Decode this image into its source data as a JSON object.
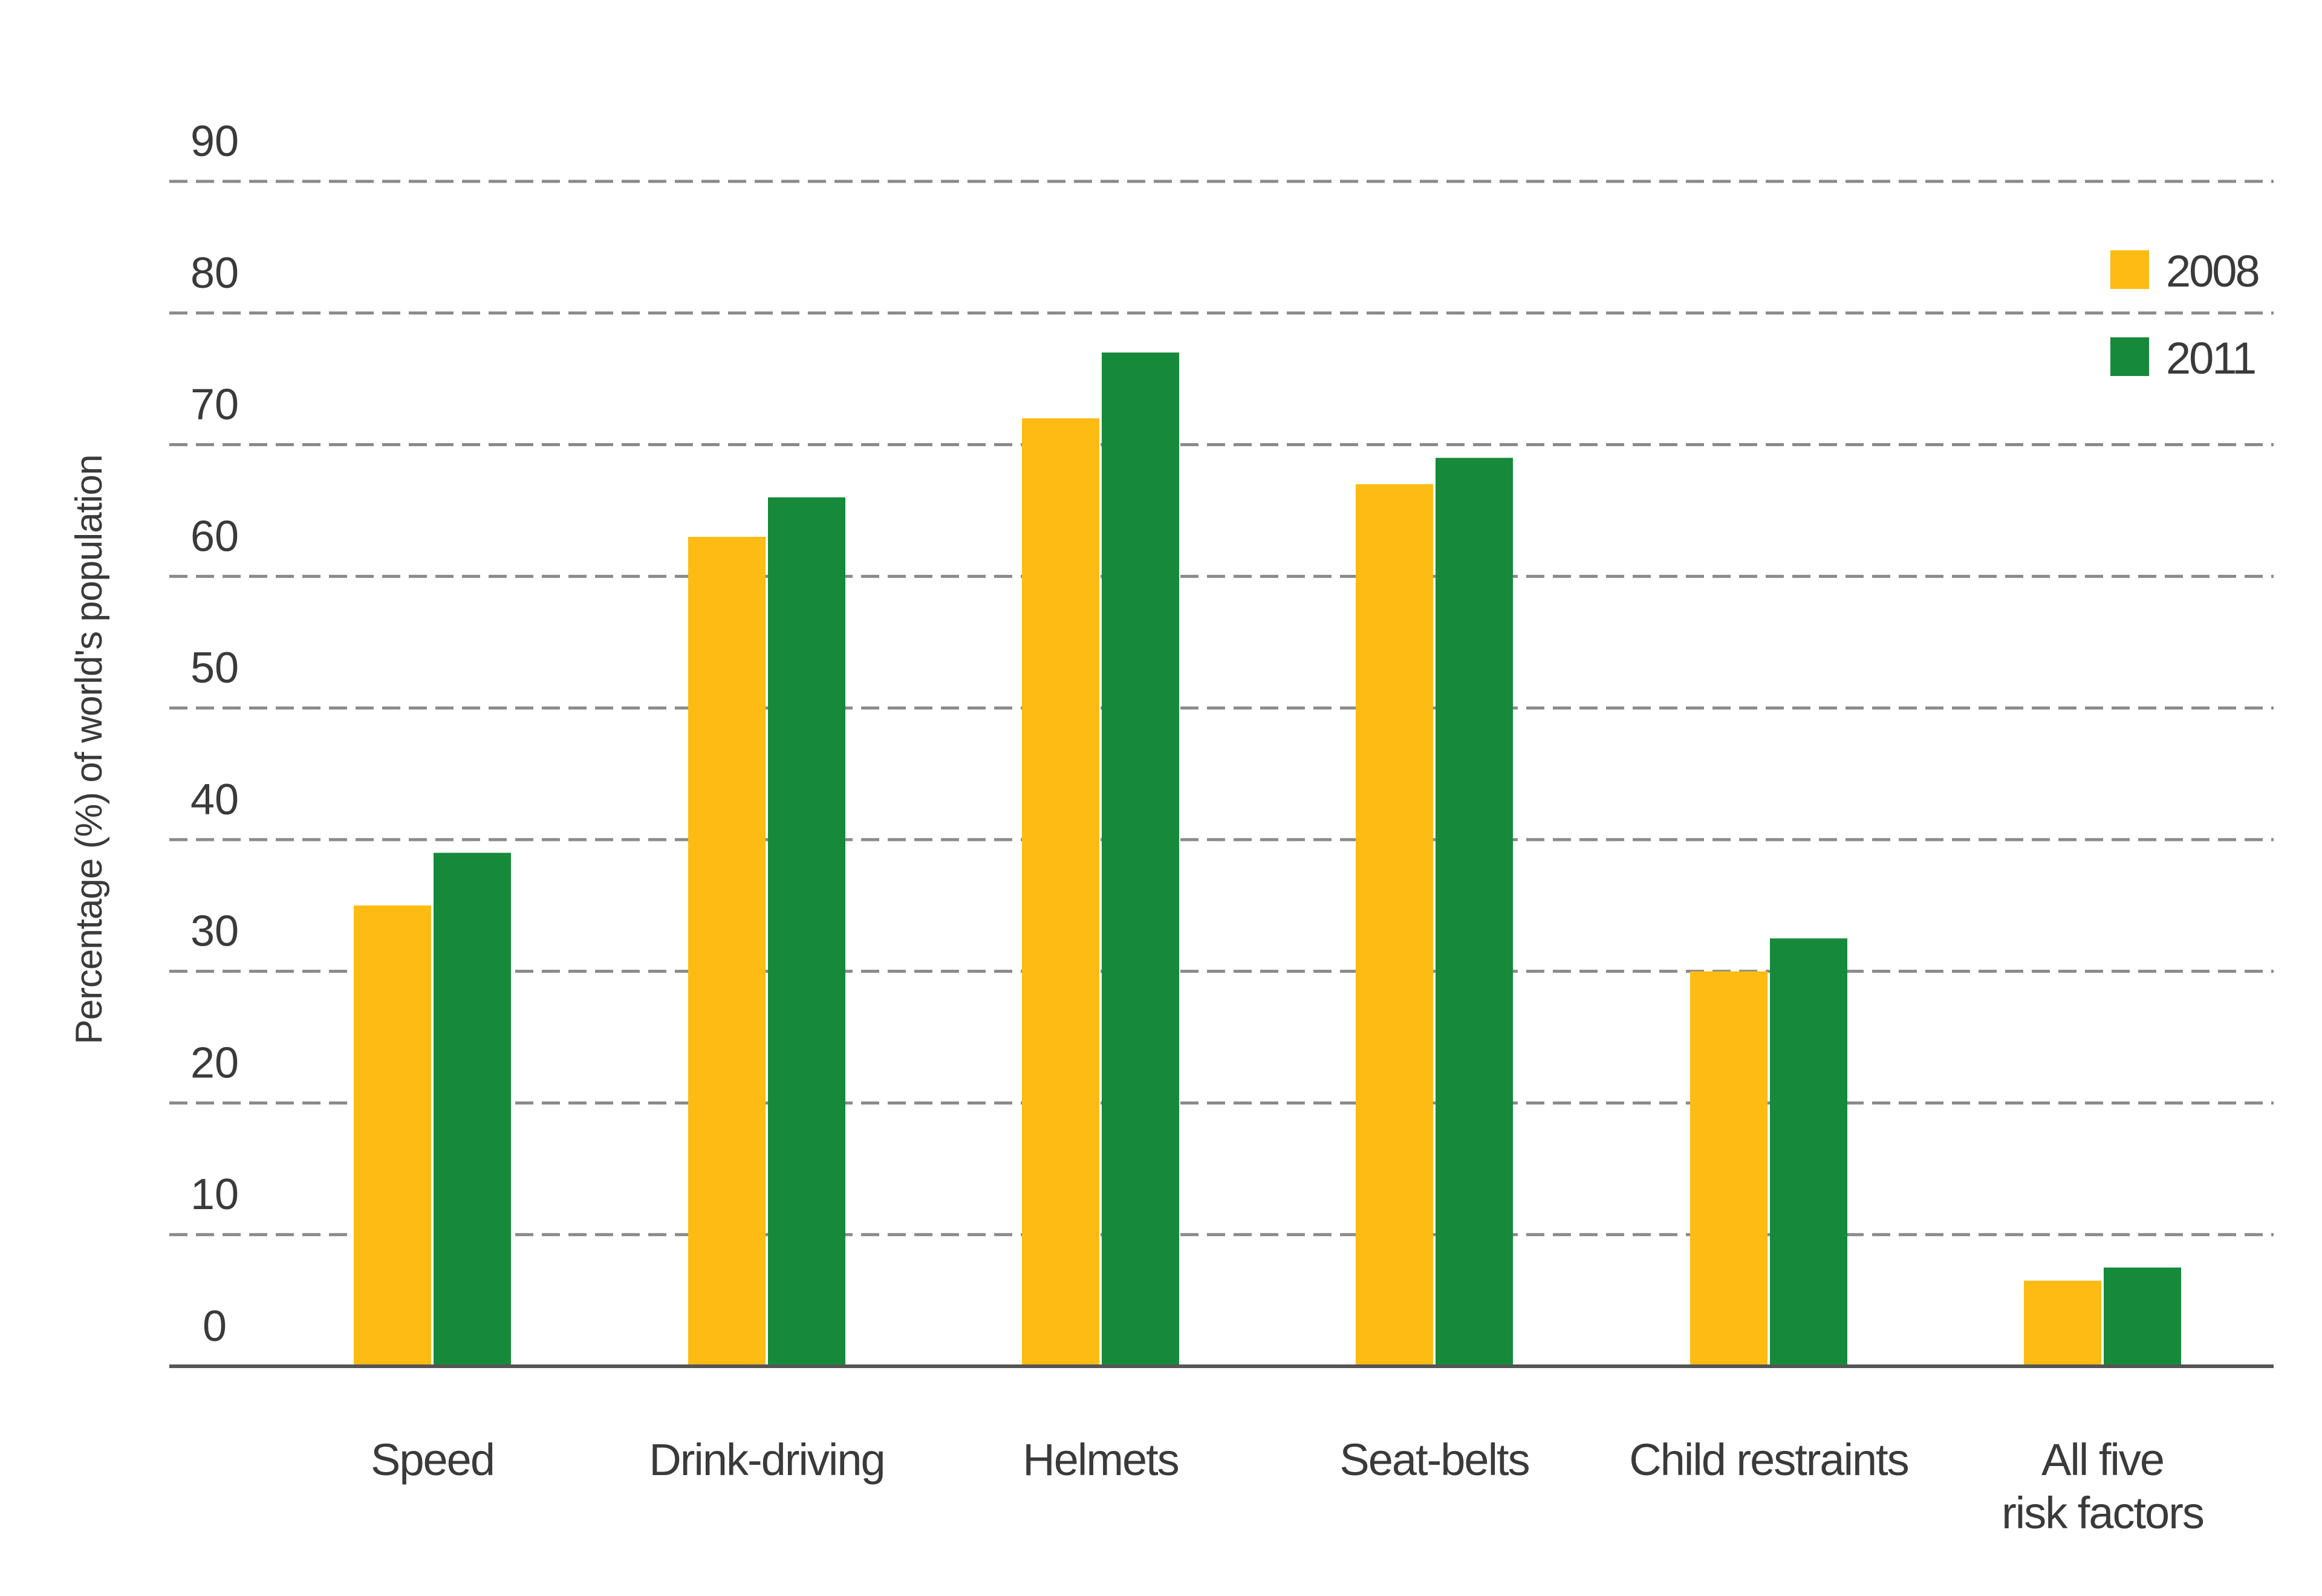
{
  "chart_data": {
    "type": "bar",
    "title": "",
    "xlabel": "",
    "ylabel": "Percentage (%) of world's population",
    "ylim": [
      0,
      90
    ],
    "yticks": [
      0,
      10,
      20,
      30,
      40,
      50,
      60,
      70,
      80,
      90
    ],
    "grid": true,
    "legend_position": "top-right",
    "categories": [
      [
        "Speed"
      ],
      [
        "Drink-driving"
      ],
      [
        "Helmets"
      ],
      [
        "Seat-belts"
      ],
      [
        "Child restraints"
      ],
      [
        "All five",
        "risk factors"
      ]
    ],
    "series": [
      {
        "name": "2008",
        "color": "#FDBB13",
        "values": [
          35,
          63,
          72,
          67,
          30,
          6.5
        ]
      },
      {
        "name": "2011",
        "color": "#168A3A",
        "values": [
          39,
          66,
          77,
          69,
          32.5,
          7.5
        ]
      }
    ]
  }
}
